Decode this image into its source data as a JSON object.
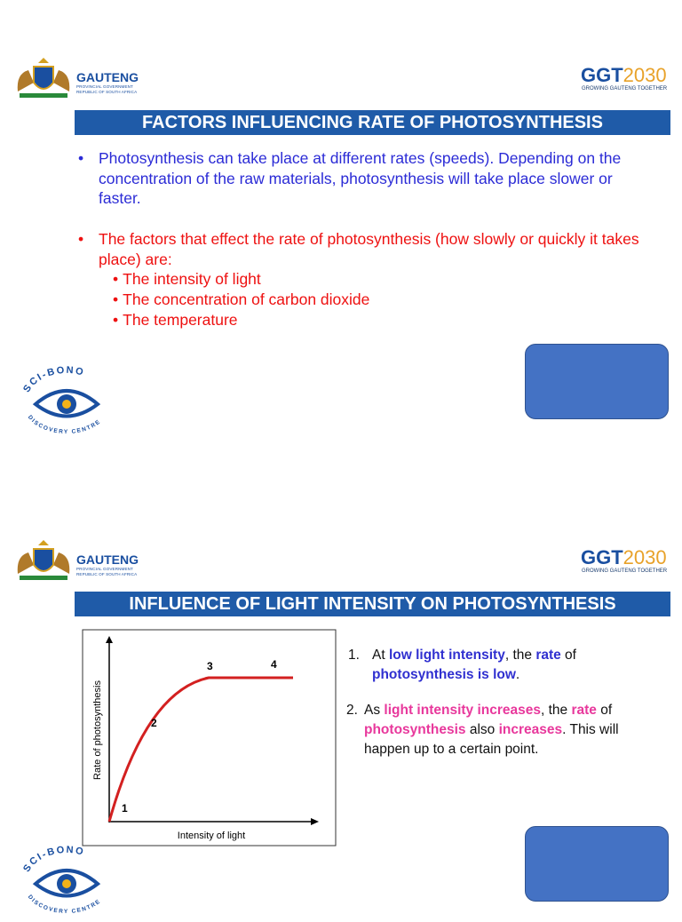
{
  "slides": [
    {
      "header": {
        "gauteng": "GAUTENG",
        "gov": "PROVINCIAL GOVERNMENT",
        "country": "REPUBLIC OF SOUTH AFRICA",
        "ggt": "GGT",
        "year": "2030",
        "tagline": "GROWING GAUTENG TOGETHER"
      },
      "title": "FACTORS INFLUENCING RATE OF PHOTOSYNTHESIS",
      "bullets": [
        {
          "text": "Photosynthesis can take place at different rates (speeds). Depending on the concentration of the raw materials, photosynthesis will take place slower or faster.",
          "color": "#2b2bd6"
        },
        {
          "text": "The factors that effect the rate of photosynthesis (how slowly or quickly it takes place) are:",
          "color": "#ee1111",
          "sub": [
            "The intensity of light",
            "The concentration of carbon dioxide",
            "The temperature"
          ]
        }
      ],
      "footer_logo": {
        "top": "SCI-BONO",
        "bottom": "DISCOVERY CENTRE"
      }
    },
    {
      "header": {
        "gauteng": "GAUTENG",
        "gov": "PROVINCIAL GOVERNMENT",
        "country": "REPUBLIC OF SOUTH AFRICA",
        "ggt": "GGT",
        "year": "2030",
        "tagline": "GROWING GAUTENG TOGETHER"
      },
      "title": "INFLUENCE OF LIGHT INTENSITY ON PHOTOSYNTHESIS",
      "graph": {
        "y_label": "Rate of photosynthesis",
        "x_label": "Intensity of light",
        "points": [
          "1",
          "2",
          "3",
          "4"
        ]
      },
      "points": [
        {
          "number": "1.",
          "runs": [
            {
              "text": "At "
            },
            {
              "text": "low light intensity",
              "color": "#3030d0"
            },
            {
              "text": ", the "
            },
            {
              "text": "rate",
              "color": "#3030d0"
            },
            {
              "text": " of "
            },
            {
              "text": "photosynthesis is low",
              "color": "#3030d0"
            },
            {
              "text": "."
            }
          ]
        },
        {
          "number": "2.",
          "runs": [
            {
              "text": "As "
            },
            {
              "text": "light intensity increases",
              "color": "#e8389c"
            },
            {
              "text": ", the "
            },
            {
              "text": "rate",
              "color": "#e8389c"
            },
            {
              "text": " of "
            },
            {
              "text": "photosynthesis",
              "color": "#e8389c"
            },
            {
              "text": " also "
            },
            {
              "text": "increases",
              "color": "#e8389c"
            },
            {
              "text": ". This will happen up to a certain point."
            }
          ]
        }
      ],
      "footer_logo": {
        "top": "SCI-BONO",
        "bottom": "DISCOVERY CENTRE"
      }
    }
  ]
}
